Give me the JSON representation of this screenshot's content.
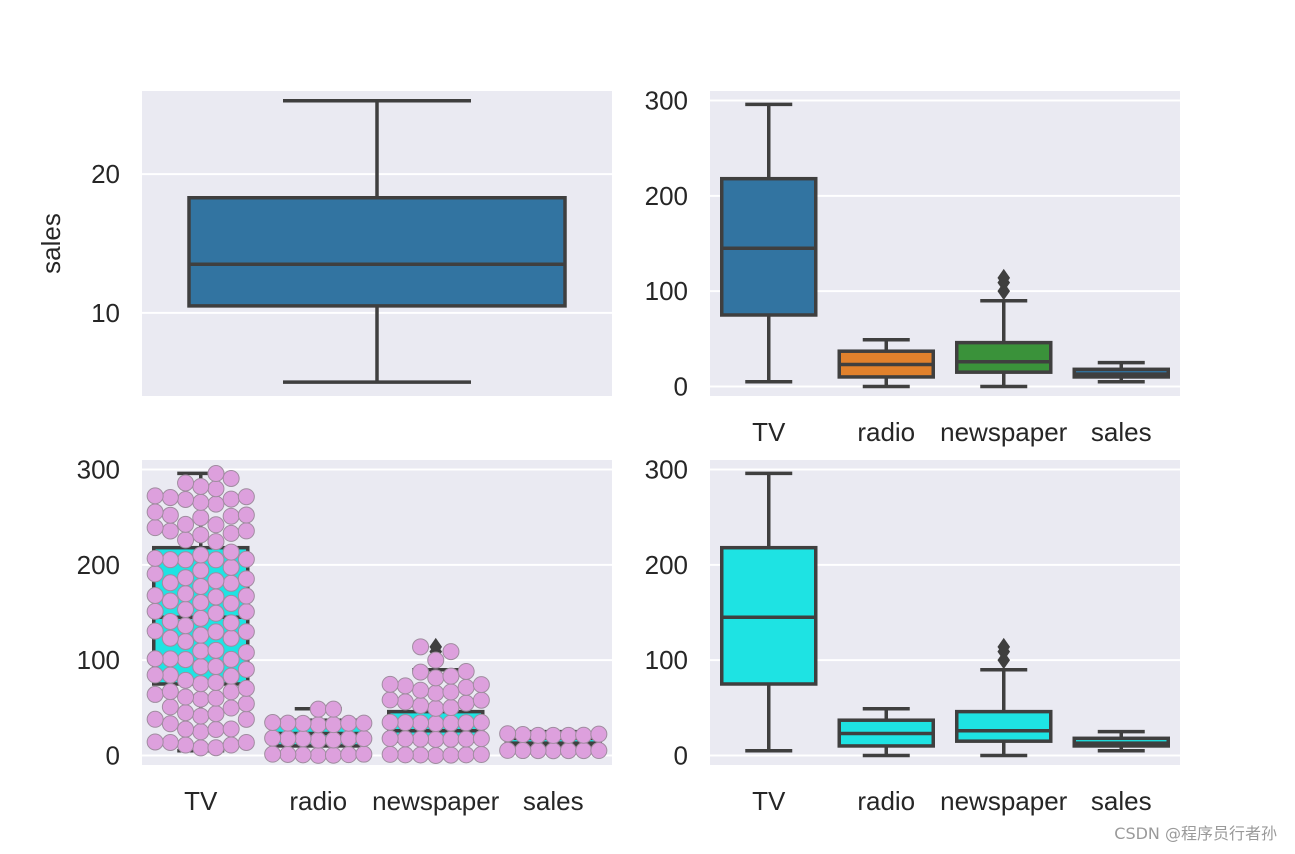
{
  "watermark": "CSDN @程序员行者孙",
  "chart_data": [
    {
      "type": "box",
      "panel": "top-left",
      "ylabel": "sales",
      "ylim": [
        4.0,
        26.0
      ],
      "yticks": [
        10,
        20
      ],
      "categories": [
        ""
      ],
      "grid": true,
      "boxes": [
        {
          "category": "sales",
          "color": "#3274a1",
          "whisker_low": 5,
          "q1": 10.5,
          "median": 13.5,
          "q3": 18.3,
          "whisker_high": 25.3,
          "outliers": []
        }
      ]
    },
    {
      "type": "box",
      "panel": "top-right",
      "ylabel": "",
      "ylim": [
        -10,
        310
      ],
      "yticks": [
        0,
        100,
        200,
        300
      ],
      "categories": [
        "TV",
        "radio",
        "newspaper",
        "sales"
      ],
      "grid": true,
      "boxes": [
        {
          "category": "TV",
          "color": "#3274a1",
          "whisker_low": 5,
          "q1": 75,
          "median": 145,
          "q3": 218,
          "whisker_high": 296,
          "outliers": []
        },
        {
          "category": "radio",
          "color": "#e1812c",
          "whisker_low": 0,
          "q1": 10,
          "median": 23,
          "q3": 37,
          "whisker_high": 49,
          "outliers": []
        },
        {
          "category": "newspaper",
          "color": "#3a923a",
          "whisker_low": 0,
          "q1": 15,
          "median": 26,
          "q3": 46,
          "whisker_high": 90,
          "outliers": [
            100,
            109,
            114
          ]
        },
        {
          "category": "sales",
          "color": "#3274a1",
          "whisker_low": 5,
          "q1": 10,
          "median": 13,
          "q3": 18,
          "whisker_high": 25,
          "outliers": []
        }
      ]
    },
    {
      "type": "box",
      "panel": "bottom-left",
      "ylabel": "",
      "ylim": [
        -10,
        310
      ],
      "yticks": [
        0,
        100,
        200,
        300
      ],
      "categories": [
        "TV",
        "radio",
        "newspaper",
        "sales"
      ],
      "grid": true,
      "swarm_color": "#dda0dd",
      "boxes": [
        {
          "category": "TV",
          "color": "#1ee3e3",
          "whisker_low": 5,
          "q1": 75,
          "median": 145,
          "q3": 218,
          "whisker_high": 296,
          "outliers": []
        },
        {
          "category": "radio",
          "color": "#1ee3e3",
          "whisker_low": 0,
          "q1": 10,
          "median": 23,
          "q3": 37,
          "whisker_high": 49,
          "outliers": []
        },
        {
          "category": "newspaper",
          "color": "#1ee3e3",
          "whisker_low": 0,
          "q1": 15,
          "median": 26,
          "q3": 46,
          "whisker_high": 90,
          "outliers": [
            100,
            109,
            114
          ]
        },
        {
          "category": "sales",
          "color": "#1ee3e3",
          "whisker_low": 5,
          "q1": 10,
          "median": 13,
          "q3": 18,
          "whisker_high": 25,
          "outliers": []
        }
      ]
    },
    {
      "type": "box",
      "panel": "bottom-right",
      "ylabel": "",
      "ylim": [
        -10,
        310
      ],
      "yticks": [
        0,
        100,
        200,
        300
      ],
      "categories": [
        "TV",
        "radio",
        "newspaper",
        "sales"
      ],
      "grid": true,
      "boxes": [
        {
          "category": "TV",
          "color": "#1ee3e3",
          "whisker_low": 5,
          "q1": 75,
          "median": 145,
          "q3": 218,
          "whisker_high": 296,
          "outliers": []
        },
        {
          "category": "radio",
          "color": "#1ee3e3",
          "whisker_low": 0,
          "q1": 10,
          "median": 23,
          "q3": 37,
          "whisker_high": 49,
          "outliers": []
        },
        {
          "category": "newspaper",
          "color": "#1ee3e3",
          "whisker_low": 0,
          "q1": 15,
          "median": 26,
          "q3": 46,
          "whisker_high": 90,
          "outliers": [
            100,
            109,
            114
          ]
        },
        {
          "category": "sales",
          "color": "#1ee3e3",
          "whisker_low": 5,
          "q1": 10,
          "median": 13,
          "q3": 18,
          "whisker_high": 25,
          "outliers": []
        }
      ]
    }
  ]
}
